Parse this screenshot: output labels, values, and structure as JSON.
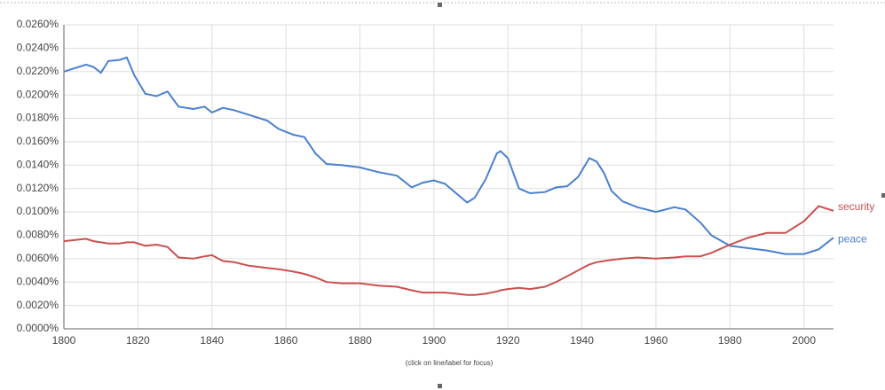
{
  "chart_data": {
    "type": "line",
    "note": "(click on line/label for focus)",
    "x": [
      1800,
      1803,
      1806,
      1808,
      1810,
      1812,
      1815,
      1817,
      1819,
      1822,
      1825,
      1828,
      1831,
      1835,
      1838,
      1840,
      1843,
      1846,
      1850,
      1855,
      1858,
      1862,
      1865,
      1868,
      1871,
      1875,
      1880,
      1885,
      1890,
      1894,
      1897,
      1900,
      1903,
      1906,
      1909,
      1911,
      1914,
      1917,
      1918,
      1920,
      1923,
      1926,
      1930,
      1933,
      1936,
      1939,
      1942,
      1944,
      1946,
      1948,
      1951,
      1955,
      1960,
      1965,
      1968,
      1972,
      1975,
      1980,
      1985,
      1990,
      1995,
      2000,
      2004,
      2008
    ],
    "series": [
      {
        "name": "peace",
        "color": "#4a7fcf",
        "values": [
          0.022,
          0.0223,
          0.0226,
          0.0224,
          0.0219,
          0.0229,
          0.023,
          0.0232,
          0.0217,
          0.0201,
          0.0199,
          0.0203,
          0.019,
          0.0188,
          0.019,
          0.0185,
          0.0189,
          0.0187,
          0.0183,
          0.0178,
          0.0171,
          0.0166,
          0.0164,
          0.015,
          0.0141,
          0.014,
          0.0138,
          0.0134,
          0.0131,
          0.0121,
          0.0125,
          0.0127,
          0.0124,
          0.0116,
          0.0108,
          0.0112,
          0.0128,
          0.015,
          0.0152,
          0.0146,
          0.012,
          0.0116,
          0.0117,
          0.0121,
          0.0122,
          0.013,
          0.0146,
          0.0143,
          0.0133,
          0.0118,
          0.0109,
          0.0104,
          0.01,
          0.0104,
          0.0102,
          0.0091,
          0.008,
          0.0071,
          0.0069,
          0.0067,
          0.0064,
          0.0064,
          0.0068,
          0.0078
        ]
      },
      {
        "name": "security",
        "color": "#c9504f",
        "values": [
          0.0075,
          0.0076,
          0.0077,
          0.0075,
          0.0074,
          0.0073,
          0.0073,
          0.0074,
          0.0074,
          0.0071,
          0.0072,
          0.007,
          0.0061,
          0.006,
          0.0062,
          0.0063,
          0.0058,
          0.0057,
          0.0054,
          0.0052,
          0.0051,
          0.0049,
          0.0047,
          0.0044,
          0.004,
          0.0039,
          0.0039,
          0.0037,
          0.0036,
          0.0033,
          0.0031,
          0.0031,
          0.0031,
          0.003,
          0.0029,
          0.0029,
          0.003,
          0.0032,
          0.0033,
          0.0034,
          0.0035,
          0.0034,
          0.0036,
          0.004,
          0.0045,
          0.005,
          0.0055,
          0.0057,
          0.0058,
          0.0059,
          0.006,
          0.0061,
          0.006,
          0.0061,
          0.0062,
          0.0062,
          0.0065,
          0.0072,
          0.0078,
          0.0082,
          0.0082,
          0.0092,
          0.0105,
          0.0101
        ]
      }
    ],
    "xlim": [
      1800,
      2008
    ],
    "xticks": [
      1800,
      1820,
      1840,
      1860,
      1880,
      1900,
      1920,
      1940,
      1960,
      1980,
      2000
    ],
    "ylim": [
      0,
      0.026
    ],
    "yticks": [
      {
        "value": 0,
        "label": "0.0000%"
      },
      {
        "value": 0.002,
        "label": "0.0020%"
      },
      {
        "value": 0.004,
        "label": "0.0040%"
      },
      {
        "value": 0.006,
        "label": "0.0060%"
      },
      {
        "value": 0.008,
        "label": "0.0080%"
      },
      {
        "value": 0.01,
        "label": "0.0100%"
      },
      {
        "value": 0.012,
        "label": "0.0120%"
      },
      {
        "value": 0.014,
        "label": "0.0140%"
      },
      {
        "value": 0.016,
        "label": "0.0160%"
      },
      {
        "value": 0.018,
        "label": "0.0180%"
      },
      {
        "value": 0.02,
        "label": "0.0200%"
      },
      {
        "value": 0.022,
        "label": "0.0220%"
      },
      {
        "value": 0.024,
        "label": "0.0240%"
      },
      {
        "value": 0.026,
        "label": "0.0260%"
      }
    ],
    "grid": true
  }
}
